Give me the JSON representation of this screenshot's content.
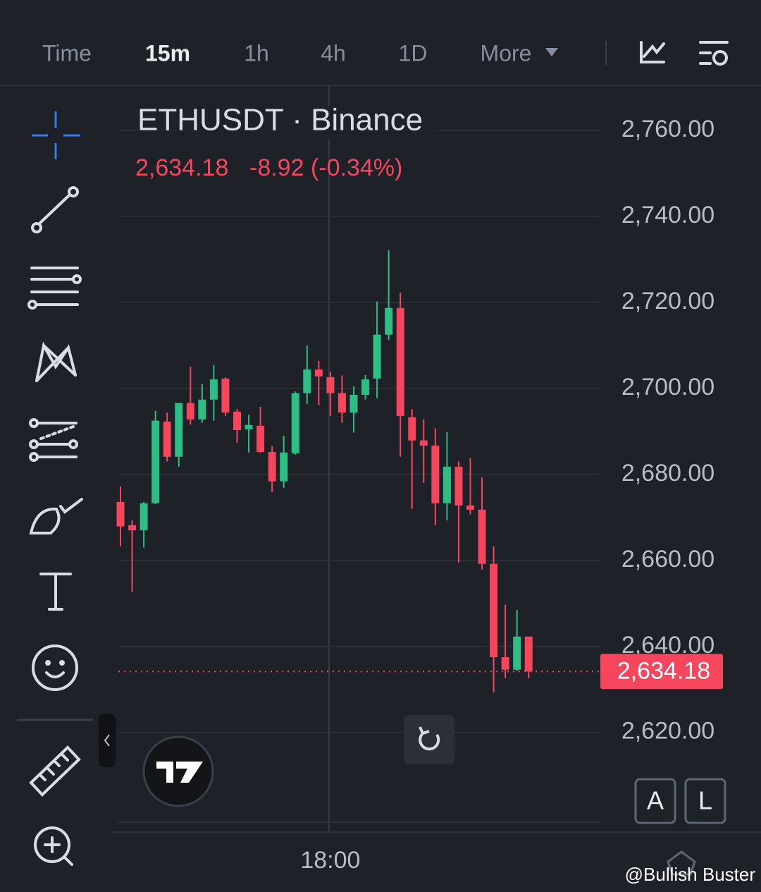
{
  "toolbar": {
    "tabs": [
      "Time",
      "15m",
      "1h",
      "4h",
      "1D",
      "More"
    ],
    "active": 1
  },
  "buttons": [
    "A",
    "L"
  ],
  "watermark": "@Bullish Buster",
  "chart_data": {
    "type": "candlestick",
    "title": "ETHUSDT · Binance",
    "quote": {
      "price": "2,634.18",
      "change": "-8.92 (-0.34%)"
    },
    "categories": [
      null,
      null,
      null,
      null,
      null,
      null,
      null,
      null,
      null,
      null,
      null,
      null,
      null,
      null,
      null,
      null,
      null,
      null,
      "18:00",
      null,
      null,
      null,
      null,
      null,
      null,
      null,
      null,
      null,
      null,
      null,
      null,
      null,
      null,
      null,
      null,
      null
    ],
    "open": [
      2673.6,
      2668.2,
      2667.0,
      2673.3,
      2692.3,
      2684.1,
      2696.6,
      2692.8,
      2697.4,
      2702.3,
      2694.6,
      2690.5,
      2691.3,
      2685.2,
      2678.4,
      2684.9,
      2698.9,
      2704.4,
      2702.6,
      2698.9,
      2694.4,
      2698.5,
      2702.3,
      2712.5,
      2718.7,
      2693.3,
      2687.9,
      2686.7,
      2673.3,
      2681.8,
      2672.8,
      2671.8,
      2659.2,
      2637.5,
      2634.6,
      2642.3
    ],
    "high": [
      2677.2,
      2669.3,
      2673.6,
      2694.8,
      2694.4,
      2696.6,
      2705.1,
      2701.0,
      2705.4,
      2702.6,
      2695.2,
      2693.9,
      2695.7,
      2686.6,
      2689.0,
      2699.3,
      2710.0,
      2706.4,
      2703.9,
      2703.0,
      2700.5,
      2703.1,
      2720.2,
      2732.1,
      2722.3,
      2695.2,
      2692.8,
      2690.7,
      2689.8,
      2683.0,
      2683.8,
      2679.3,
      2663.3,
      2649.7,
      2648.5,
      2642.3
    ],
    "low": [
      2663.3,
      2652.6,
      2663.0,
      2673.1,
      2683.0,
      2681.8,
      2691.6,
      2692.0,
      2692.5,
      2693.6,
      2687.4,
      2685.1,
      2685.1,
      2675.9,
      2676.9,
      2684.6,
      2696.4,
      2696.1,
      2693.6,
      2692.0,
      2689.7,
      2697.4,
      2697.7,
      2711.3,
      2684.1,
      2672.0,
      2678.0,
      2668.2,
      2669.3,
      2659.5,
      2670.7,
      2657.9,
      2629.3,
      2632.6,
      2634.3,
      2632.6
    ],
    "close": [
      2667.9,
      2667.0,
      2673.3,
      2692.5,
      2684.1,
      2696.6,
      2692.8,
      2697.4,
      2702.1,
      2694.4,
      2690.3,
      2691.5,
      2685.2,
      2678.4,
      2685.1,
      2698.9,
      2704.4,
      2702.8,
      2698.9,
      2694.4,
      2698.5,
      2702.1,
      2712.5,
      2718.7,
      2693.6,
      2687.9,
      2686.7,
      2673.3,
      2681.8,
      2672.8,
      2671.8,
      2659.2,
      2637.5,
      2634.6,
      2642.3,
      2634.18
    ],
    "up_color": "#2ebd85",
    "down_color": "#f6465d",
    "price_line": {
      "value": 2634.18,
      "label": "2,634.18"
    },
    "ylim": [
      2599.3,
      2769.0
    ],
    "yticks": [
      {
        "value": 2620,
        "label": "2,620.00"
      },
      {
        "value": 2640,
        "label": "2,640.00"
      },
      {
        "value": 2660,
        "label": "2,660.00"
      },
      {
        "value": 2680,
        "label": "2,680.00"
      },
      {
        "value": 2700,
        "label": "2,700.00"
      },
      {
        "value": 2720,
        "label": "2,720.00"
      },
      {
        "value": 2740,
        "label": "2,740.00"
      },
      {
        "value": 2760,
        "label": "2,760.00"
      }
    ],
    "grid": true
  }
}
